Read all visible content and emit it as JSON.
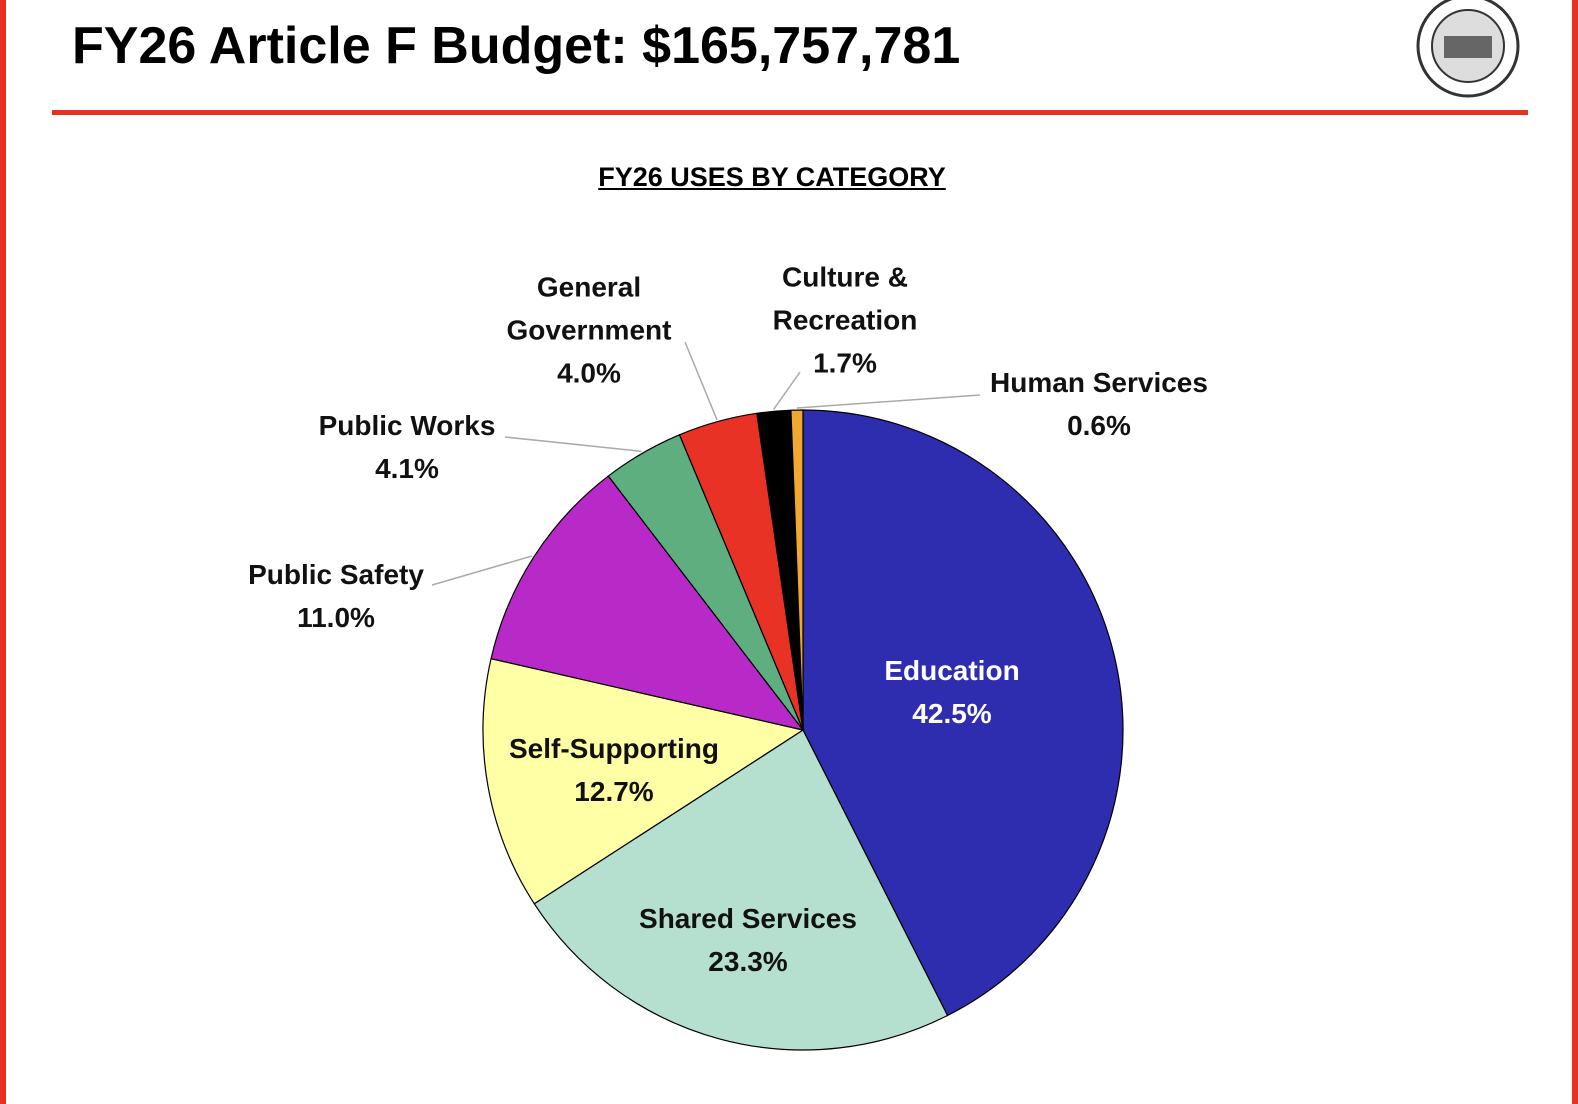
{
  "header": {
    "title": "FY26 Article F Budget: $165,757,781"
  },
  "chart_data": {
    "type": "pie",
    "title": "FY26 USES BY CATEGORY",
    "categories": [
      "Education",
      "Shared Services",
      "Self-Supporting",
      "Public Safety",
      "Public Works",
      "General Government",
      "Culture & Recreation",
      "Human Services"
    ],
    "values": [
      42.5,
      23.3,
      12.7,
      11.0,
      4.1,
      4.0,
      1.7,
      0.6
    ],
    "value_labels": [
      "42.5%",
      "23.3%",
      "12.7%",
      "11.0%",
      "4.1%",
      "4.0%",
      "1.7%",
      "0.6%"
    ],
    "colors": [
      "#2e2db0",
      "#b5e0cf",
      "#ffffa6",
      "#b82ac8",
      "#5fae80",
      "#e83225",
      "#000000",
      "#f0a830"
    ]
  }
}
